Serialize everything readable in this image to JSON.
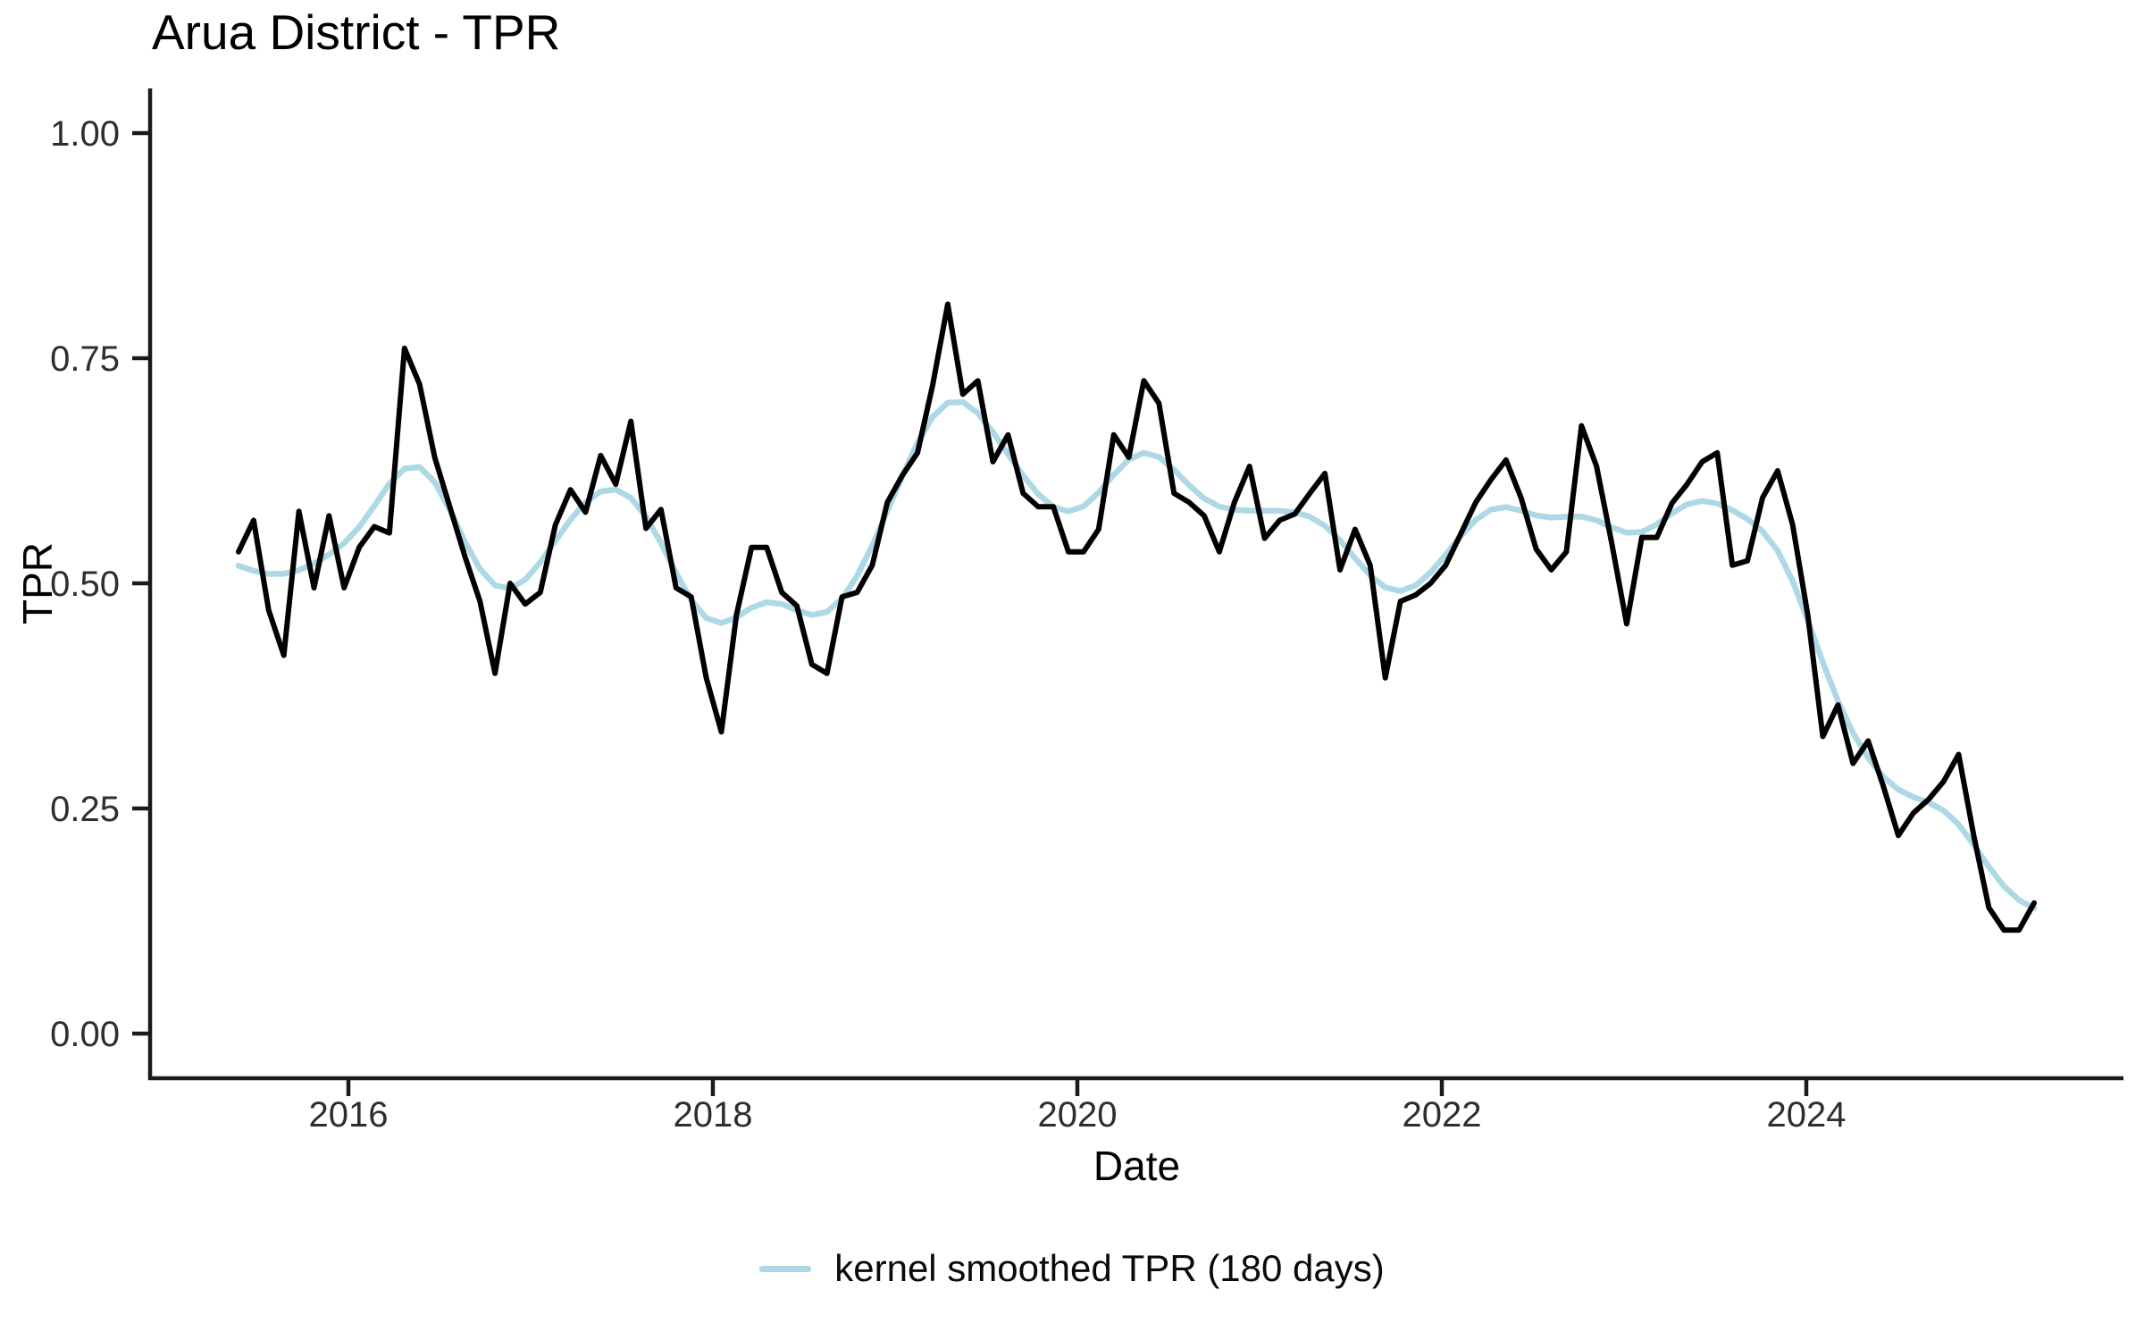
{
  "title": "Arua District - TPR",
  "axes": {
    "y_title": "TPR",
    "x_title": "Date",
    "y_tick_labels": [
      "0.00",
      "0.25",
      "0.50",
      "0.75",
      "1.00"
    ],
    "x_tick_labels": [
      "2016",
      "2018",
      "2020",
      "2022",
      "2024"
    ]
  },
  "legend": {
    "label": "kernel smoothed TPR (180 days)",
    "swatch_color": "#ADD8E6"
  },
  "colors": {
    "raw_line": "#000000",
    "smoothed_line": "#ADD8E6",
    "axis": "#1a1a1a",
    "tick_text": "#2e2e2e"
  },
  "chart_data": {
    "type": "line",
    "title": "Arua District - TPR",
    "xlabel": "Date",
    "ylabel": "TPR",
    "ylim": [
      0.0,
      1.0
    ],
    "y_ticks": [
      0.0,
      0.25,
      0.5,
      0.75,
      1.0
    ],
    "x_tick_years": [
      2016,
      2018,
      2020,
      2022,
      2024
    ],
    "grid": false,
    "legend_position": "bottom",
    "x_monthly_start": "2015-05",
    "x_monthly_end": "2025-04",
    "series": [
      {
        "name": "TPR",
        "color": "#000000",
        "values": [
          0.535,
          0.57,
          0.47,
          0.42,
          0.58,
          0.495,
          0.575,
          0.495,
          0.54,
          0.563,
          0.556,
          0.761,
          0.721,
          0.64,
          0.585,
          0.53,
          0.48,
          0.4,
          0.5,
          0.477,
          0.49,
          0.565,
          0.604,
          0.579,
          0.642,
          0.61,
          0.68,
          0.561,
          0.582,
          0.495,
          0.485,
          0.395,
          0.335,
          0.465,
          0.54,
          0.54,
          0.49,
          0.475,
          0.41,
          0.4,
          0.485,
          0.49,
          0.52,
          0.59,
          0.62,
          0.645,
          0.72,
          0.81,
          0.71,
          0.725,
          0.635,
          0.665,
          0.6,
          0.585,
          0.585,
          0.535,
          0.535,
          0.56,
          0.665,
          0.64,
          0.725,
          0.7,
          0.6,
          0.59,
          0.575,
          0.535,
          0.59,
          0.63,
          0.55,
          0.57,
          0.577,
          0.6,
          0.622,
          0.515,
          0.56,
          0.52,
          0.395,
          0.48,
          0.487,
          0.5,
          0.52,
          0.555,
          0.59,
          0.615,
          0.637,
          0.595,
          0.538,
          0.515,
          0.535,
          0.675,
          0.63,
          0.545,
          0.455,
          0.551,
          0.551,
          0.589,
          0.61,
          0.635,
          0.645,
          0.52,
          0.525,
          0.595,
          0.625,
          0.565,
          0.465,
          0.33,
          0.365,
          0.3,
          0.325,
          0.275,
          0.22,
          0.245,
          0.26,
          0.28,
          0.31,
          0.22,
          0.14,
          0.115,
          0.115,
          0.145
        ]
      },
      {
        "name": "kernel smoothed TPR (180 days)",
        "color": "#ADD8E6",
        "derived_from": "TPR",
        "smoothing": "gaussian kernel, 180-day bandwidth"
      }
    ]
  }
}
